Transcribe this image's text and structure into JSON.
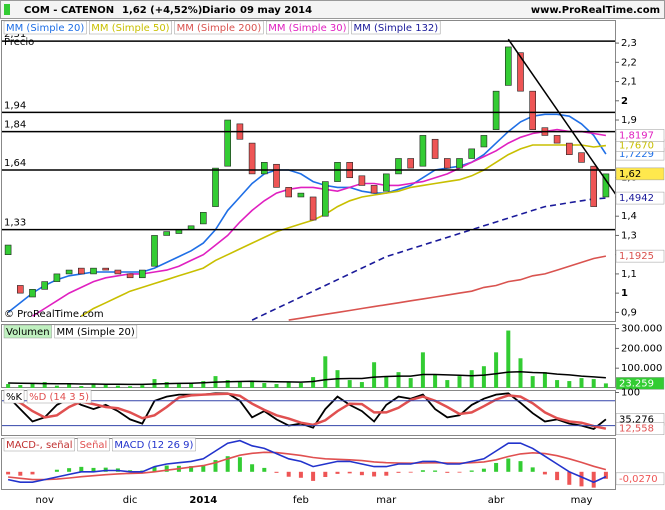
{
  "header": {
    "symbol": "COM - CATENON",
    "quote": "1,62 (+4,52%)",
    "period": "Diario",
    "date": "09 may 2014",
    "site": "www.ProRealTime.com"
  },
  "chart_data": [
    {
      "type": "candlestick",
      "label": "Precio",
      "watermark": "© ProRealTime.com",
      "categories": [
        null,
        null,
        null,
        "nov",
        null,
        null,
        null,
        null,
        null,
        null,
        "dic",
        null,
        null,
        null,
        null,
        null,
        "2014",
        null,
        null,
        null,
        null,
        null,
        null,
        null,
        "feb",
        null,
        null,
        null,
        null,
        null,
        null,
        "mar",
        null,
        null,
        null,
        null,
        null,
        null,
        null,
        null,
        "abr",
        null,
        null,
        null,
        null,
        null,
        null,
        "may",
        null,
        null
      ],
      "open": [
        1.2,
        1.04,
        0.98,
        1.02,
        1.06,
        1.1,
        1.13,
        1.1,
        1.13,
        1.12,
        1.1,
        1.08,
        1.14,
        1.3,
        1.31,
        1.33,
        1.36,
        1.45,
        1.66,
        1.88,
        1.78,
        1.62,
        1.67,
        1.55,
        1.5,
        1.5,
        1.4,
        1.58,
        1.68,
        1.61,
        1.56,
        1.53,
        1.62,
        1.7,
        1.66,
        1.8,
        1.7,
        1.65,
        1.7,
        1.76,
        1.85,
        2.08,
        2.25,
        2.05,
        1.86,
        1.82,
        1.78,
        1.73,
        1.66,
        1.5
      ],
      "close": [
        1.25,
        1.0,
        1.02,
        1.06,
        1.1,
        1.12,
        1.1,
        1.13,
        1.12,
        1.1,
        1.08,
        1.12,
        1.3,
        1.32,
        1.33,
        1.35,
        1.42,
        1.65,
        1.9,
        1.8,
        1.62,
        1.68,
        1.55,
        1.5,
        1.52,
        1.38,
        1.58,
        1.68,
        1.6,
        1.56,
        1.52,
        1.62,
        1.7,
        1.65,
        1.82,
        1.7,
        1.65,
        1.7,
        1.75,
        1.82,
        2.05,
        2.28,
        2.05,
        1.85,
        1.82,
        1.78,
        1.72,
        1.68,
        1.45,
        1.62
      ],
      "close_label": "1,62",
      "colors": {
        "up": "#33cc33",
        "down": "#ee5555"
      },
      "ylim": [
        0.85,
        2.42
      ],
      "yticks": [
        {
          "value": 0.9,
          "label": "0,9"
        },
        1,
        {
          "value": 1.1,
          "label": "1,1"
        },
        {
          "value": 1.2,
          "label": "1,2"
        },
        {
          "value": 1.3,
          "label": "1,3"
        },
        {
          "value": 1.4,
          "label": "1,4"
        },
        {
          "value": 1.5,
          "label": "1,5"
        },
        {
          "value": 1.6,
          "label": "1,6"
        },
        {
          "value": 1.8,
          "label": "1,8"
        },
        {
          "value": 1.9,
          "label": "1,9"
        },
        2,
        {
          "value": 2.1,
          "label": "2,1"
        },
        {
          "value": 2.2,
          "label": "2,2"
        },
        {
          "value": 2.3,
          "label": "2,3"
        }
      ],
      "levels": [
        {
          "value": 2.31,
          "label": "2,31"
        },
        {
          "value": 1.94,
          "label": "1,94"
        },
        {
          "value": 1.84,
          "label": "1,84"
        },
        {
          "value": 1.64,
          "label": "1,64"
        },
        {
          "value": 1.33,
          "label": "1,33"
        }
      ],
      "trendline": {
        "x": [
          41,
          50.5
        ],
        "y": [
          2.32,
          1.45
        ]
      },
      "series": [
        {
          "name": "MM (Simple 20)",
          "color": "#1f6fe6",
          "value_label": "1,7229",
          "values": [
            0.9,
            0.95,
            1.0,
            1.04,
            1.07,
            1.09,
            1.1,
            1.11,
            1.11,
            1.11,
            1.11,
            1.11,
            1.13,
            1.16,
            1.19,
            1.22,
            1.26,
            1.33,
            1.43,
            1.5,
            1.57,
            1.62,
            1.64,
            1.64,
            1.62,
            1.58,
            1.56,
            1.55,
            1.55,
            1.53,
            1.52,
            1.52,
            1.54,
            1.56,
            1.6,
            1.64,
            1.65,
            1.66,
            1.68,
            1.72,
            1.78,
            1.84,
            1.89,
            1.92,
            1.93,
            1.93,
            1.92,
            1.88,
            1.82,
            1.7229
          ]
        },
        {
          "name": "MM (Simple 50)",
          "color": "#c8bf00",
          "value_label": "1,7670",
          "values": [
            null,
            null,
            null,
            null,
            null,
            null,
            0.88,
            0.92,
            0.95,
            0.98,
            1.01,
            1.03,
            1.05,
            1.07,
            1.09,
            1.11,
            1.13,
            1.17,
            1.2,
            1.23,
            1.26,
            1.29,
            1.32,
            1.34,
            1.36,
            1.38,
            1.41,
            1.45,
            1.48,
            1.5,
            1.51,
            1.52,
            1.53,
            1.55,
            1.56,
            1.57,
            1.58,
            1.59,
            1.61,
            1.64,
            1.68,
            1.72,
            1.75,
            1.77,
            1.77,
            1.77,
            1.77,
            1.77,
            1.76,
            1.767
          ]
        },
        {
          "name": "MM (Simple 200)",
          "color": "#d9534f",
          "value_label": "1,1925",
          "values": [
            null,
            null,
            null,
            null,
            null,
            null,
            null,
            null,
            null,
            null,
            null,
            null,
            null,
            null,
            null,
            null,
            null,
            null,
            null,
            null,
            null,
            null,
            null,
            0.86,
            0.87,
            0.88,
            0.89,
            0.9,
            0.91,
            0.92,
            0.93,
            0.94,
            0.95,
            0.96,
            0.97,
            0.98,
            0.99,
            1.0,
            1.01,
            1.03,
            1.04,
            1.06,
            1.07,
            1.09,
            1.1,
            1.12,
            1.14,
            1.16,
            1.18,
            1.1925
          ]
        },
        {
          "name": "MM (Simple 30)",
          "color": "#e020c0",
          "value_label": "1,8197",
          "values": [
            null,
            null,
            0.88,
            0.92,
            0.96,
            1.0,
            1.03,
            1.06,
            1.08,
            1.09,
            1.1,
            1.1,
            1.11,
            1.12,
            1.14,
            1.17,
            1.2,
            1.25,
            1.3,
            1.37,
            1.43,
            1.48,
            1.52,
            1.54,
            1.55,
            1.55,
            1.54,
            1.53,
            1.55,
            1.57,
            1.57,
            1.56,
            1.56,
            1.57,
            1.58,
            1.6,
            1.62,
            1.65,
            1.68,
            1.71,
            1.74,
            1.78,
            1.81,
            1.83,
            1.84,
            1.85,
            1.84,
            1.84,
            1.83,
            1.8197
          ]
        },
        {
          "name": "MM (Simple 132)",
          "color": "#1a1a9a",
          "dashed": true,
          "value_label": "1,4942",
          "values": [
            null,
            null,
            null,
            null,
            null,
            null,
            null,
            null,
            null,
            null,
            null,
            null,
            null,
            null,
            null,
            null,
            null,
            null,
            null,
            null,
            0.86,
            0.89,
            0.92,
            0.95,
            0.98,
            1.01,
            1.04,
            1.07,
            1.1,
            1.13,
            1.16,
            1.19,
            1.21,
            1.23,
            1.25,
            1.27,
            1.29,
            1.31,
            1.33,
            1.35,
            1.37,
            1.39,
            1.41,
            1.43,
            1.45,
            1.46,
            1.47,
            1.48,
            1.49,
            1.4942
          ]
        }
      ]
    },
    {
      "type": "bar",
      "label": "Volumen",
      "color": "#33cc33",
      "value_label": "23.259",
      "values": [
        20000,
        15000,
        25000,
        30000,
        12000,
        18000,
        10000,
        22000,
        15000,
        12000,
        9000,
        14000,
        45000,
        30000,
        20000,
        25000,
        35000,
        60000,
        40000,
        30000,
        35000,
        25000,
        20000,
        30000,
        25000,
        55000,
        160000,
        90000,
        40000,
        30000,
        130000,
        60000,
        80000,
        50000,
        180000,
        70000,
        40000,
        60000,
        90000,
        110000,
        180000,
        290000,
        150000,
        60000,
        80000,
        40000,
        35000,
        50000,
        45000,
        23259
      ],
      "ylim": [
        0,
        323000
      ],
      "yticks": [
        {
          "value": 100000,
          "label": "100.000"
        },
        {
          "value": 200000,
          "label": "200.000"
        },
        {
          "value": 300000,
          "label": "300.000"
        }
      ],
      "series": [
        {
          "name": "MM (Simple 20)",
          "color": "#000000",
          "values": [
            25000,
            24000,
            23000,
            22000,
            21000,
            21000,
            20000,
            20000,
            19000,
            19000,
            18000,
            18000,
            20000,
            22000,
            23000,
            24000,
            26000,
            30000,
            32000,
            33000,
            34000,
            33000,
            32000,
            31000,
            30000,
            33000,
            42000,
            47000,
            48000,
            48000,
            55000,
            58000,
            60000,
            60000,
            68000,
            68000,
            66000,
            64000,
            62000,
            65000,
            72000,
            80000,
            82000,
            78000,
            76000,
            70000,
            66000,
            60000,
            56000,
            52000
          ]
        }
      ]
    },
    {
      "type": "line",
      "ylim": [
        -5,
        106
      ],
      "yticks": [
        100
      ],
      "levels": [
        80,
        20
      ],
      "series": [
        {
          "name": "%K",
          "color": "#000000",
          "value_label": "35,276",
          "values": [
            90,
            60,
            30,
            40,
            70,
            85,
            70,
            60,
            70,
            55,
            35,
            25,
            80,
            90,
            95,
            95,
            95,
            98,
            98,
            80,
            40,
            55,
            35,
            20,
            25,
            15,
            60,
            90,
            70,
            55,
            30,
            70,
            90,
            85,
            95,
            60,
            40,
            45,
            70,
            85,
            95,
            98,
            75,
            50,
            30,
            35,
            25,
            20,
            12,
            35.276
          ]
        },
        {
          "name": "%D (14 3 5)",
          "color": "#e05050",
          "value_label": "12,558",
          "values": [
            85,
            75,
            55,
            40,
            45,
            65,
            78,
            72,
            65,
            62,
            52,
            38,
            45,
            65,
            88,
            93,
            95,
            96,
            97,
            92,
            73,
            58,
            45,
            37,
            27,
            22,
            33,
            55,
            73,
            72,
            52,
            52,
            63,
            82,
            90,
            80,
            65,
            48,
            52,
            67,
            83,
            93,
            90,
            74,
            52,
            38,
            30,
            27,
            19,
            12.558
          ]
        }
      ]
    },
    {
      "type": "macd",
      "ylim": [
        -0.07,
        0.13
      ],
      "histogram": {
        "name": "MACD-, señal",
        "up_color": "#33cc33",
        "down_color": "#ee5555",
        "value_label": "-0,0270",
        "values": [
          -0.01,
          -0.015,
          -0.01,
          0,
          0.008,
          0.014,
          0.019,
          0.015,
          0.016,
          0.013,
          0.006,
          0.005,
          0.02,
          0.024,
          0.023,
          0.022,
          0.026,
          0.045,
          0.06,
          0.056,
          0.029,
          0.015,
          -0.004,
          -0.019,
          -0.023,
          -0.035,
          -0.02,
          -0.008,
          -0.006,
          -0.013,
          -0.018,
          -0.015,
          -0.004,
          -0.003,
          0.006,
          0.005,
          -0.004,
          -0.003,
          0.005,
          0.012,
          0.034,
          0.051,
          0.041,
          0.017,
          -0.01,
          -0.032,
          -0.05,
          -0.056,
          -0.061,
          -0.027
        ]
      },
      "series": [
        {
          "name": "Señal",
          "color": "#e05050",
          "values": [
            -0.02,
            -0.025,
            -0.03,
            -0.03,
            -0.028,
            -0.024,
            -0.019,
            -0.015,
            -0.011,
            -0.008,
            -0.006,
            -0.005,
            0.0,
            0.006,
            0.012,
            0.018,
            0.024,
            0.035,
            0.05,
            0.064,
            0.071,
            0.075,
            0.074,
            0.069,
            0.063,
            0.055,
            0.05,
            0.048,
            0.046,
            0.043,
            0.038,
            0.035,
            0.034,
            0.033,
            0.034,
            0.035,
            0.034,
            0.033,
            0.035,
            0.038,
            0.046,
            0.059,
            0.069,
            0.073,
            0.07,
            0.062,
            0.05,
            0.036,
            0.021,
            0.0085
          ]
        },
        {
          "name": "MACD (12 26 9)",
          "color": "#2233cc",
          "values": [
            -0.03,
            -0.04,
            -0.04,
            -0.03,
            -0.02,
            -0.01,
            0,
            0,
            0.005,
            0.005,
            0,
            0,
            0.02,
            0.03,
            0.035,
            0.04,
            0.05,
            0.08,
            0.11,
            0.12,
            0.1,
            0.09,
            0.07,
            0.05,
            0.04,
            0.02,
            0.03,
            0.04,
            0.04,
            0.03,
            0.02,
            0.02,
            0.03,
            0.03,
            0.04,
            0.04,
            0.03,
            0.03,
            0.04,
            0.05,
            0.08,
            0.11,
            0.11,
            0.09,
            0.06,
            0.03,
            0.0,
            -0.02,
            -0.04,
            -0.0185
          ]
        }
      ]
    }
  ]
}
